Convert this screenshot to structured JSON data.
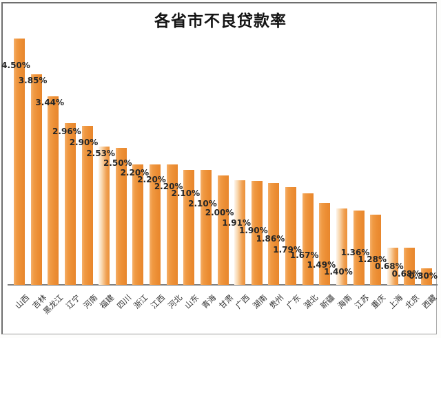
{
  "chart": {
    "title": "各省市不良贷款率"
  },
  "chart_data": {
    "type": "bar",
    "title": "各省市不良贷款率",
    "categories": [
      "山西",
      "吉林",
      "黑龙江",
      "辽宁",
      "河南",
      "福建",
      "四川",
      "浙江",
      "江西",
      "河北",
      "山东",
      "青海",
      "甘肃",
      "广西",
      "湖南",
      "贵州",
      "广东",
      "湖北",
      "新疆",
      "海南",
      "江苏",
      "重庆",
      "上海",
      "北京",
      "西藏"
    ],
    "values": [
      4.5,
      3.85,
      3.44,
      2.96,
      2.9,
      2.53,
      2.5,
      2.2,
      2.2,
      2.2,
      2.1,
      2.1,
      2.0,
      1.91,
      1.9,
      1.86,
      1.79,
      1.67,
      1.49,
      1.4,
      1.36,
      1.28,
      0.68,
      0.68,
      0.3
    ],
    "value_labels": [
      "4.50%",
      "3.85%",
      "3.44%",
      "2.96%",
      "2.90%",
      "2.53%",
      "2.50%",
      "2.20%",
      "2.20%",
      "2.20%",
      "2.10%",
      "2.10%",
      "2.00%",
      "1.91%",
      "1.90%",
      "1.86%",
      "1.79%",
      "1.67%",
      "1.49%",
      "1.40%",
      "1.36%",
      "1.28%",
      "0.68%",
      "0.68%",
      "0.30%"
    ],
    "unit": "%",
    "xlabel": "",
    "ylabel": "",
    "ylim": [
      0,
      4.8
    ],
    "grid": false,
    "legend": false,
    "y_axis_shown": false,
    "x_label_rotation_deg": 45,
    "bar_color": "#ED9036",
    "bar_color_light": "#F5B06B",
    "faded_bar_indices": [
      5,
      13,
      19,
      22
    ],
    "value_label_color": "#262626",
    "category_label_color": "#333333",
    "axis_color": "#7F7F7F",
    "title_color": "#141414",
    "background": "#FFFFFF"
  }
}
